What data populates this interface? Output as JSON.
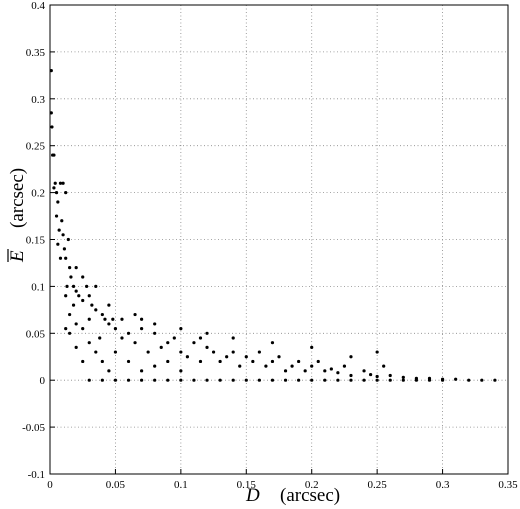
{
  "chart_data": {
    "type": "scatter",
    "xlabel_symbol": "D",
    "xlabel_unit": "(arcsec)",
    "ylabel_symbol": "E",
    "ylabel_unit": "(arcsec)",
    "xlim": [
      0,
      0.35
    ],
    "ylim": [
      -0.1,
      0.4
    ],
    "xticks": [
      0,
      0.05,
      0.1,
      0.15,
      0.2,
      0.25,
      0.3,
      0.35
    ],
    "yticks": [
      -0.1,
      -0.05,
      0,
      0.05,
      0.1,
      0.15,
      0.2,
      0.25,
      0.3,
      0.35,
      0.4
    ],
    "grid": true,
    "series": [
      {
        "color": "#000000",
        "x": [
          0.001,
          0.001,
          0.0015,
          0.002,
          0.003,
          0.003,
          0.004,
          0.005,
          0.006,
          0.008,
          0.01,
          0.012,
          0.005,
          0.007,
          0.009,
          0.01,
          0.011,
          0.012,
          0.014,
          0.015,
          0.016,
          0.013,
          0.018,
          0.02,
          0.022,
          0.025,
          0.028,
          0.03,
          0.032,
          0.035,
          0.04,
          0.042,
          0.045,
          0.048,
          0.05,
          0.012,
          0.015,
          0.02,
          0.025,
          0.03,
          0.035,
          0.038,
          0.04,
          0.045,
          0.05,
          0.055,
          0.06,
          0.065,
          0.07,
          0.075,
          0.08,
          0.085,
          0.09,
          0.095,
          0.1,
          0.105,
          0.11,
          0.115,
          0.12,
          0.125,
          0.13,
          0.135,
          0.14,
          0.145,
          0.15,
          0.155,
          0.16,
          0.165,
          0.17,
          0.175,
          0.18,
          0.185,
          0.19,
          0.195,
          0.2,
          0.205,
          0.21,
          0.215,
          0.22,
          0.225,
          0.23,
          0.24,
          0.245,
          0.25,
          0.255,
          0.26,
          0.27,
          0.28,
          0.29,
          0.3,
          0.31,
          0.32,
          0.33,
          0.34,
          0.03,
          0.04,
          0.05,
          0.06,
          0.07,
          0.08,
          0.09,
          0.1,
          0.11,
          0.12,
          0.13,
          0.14,
          0.15,
          0.16,
          0.17,
          0.18,
          0.19,
          0.2,
          0.21,
          0.22,
          0.23,
          0.24,
          0.25,
          0.26,
          0.27,
          0.28,
          0.29,
          0.3,
          0.06,
          0.07,
          0.08,
          0.09,
          0.1,
          0.065,
          0.07,
          0.08,
          0.1,
          0.12,
          0.115,
          0.14,
          0.17,
          0.2,
          0.23,
          0.25,
          0.015,
          0.02,
          0.025,
          0.03,
          0.012,
          0.018,
          0.008,
          0.006,
          0.02,
          0.025,
          0.035,
          0.045,
          0.055
        ],
        "y": [
          0.33,
          0.285,
          0.27,
          0.24,
          0.24,
          0.205,
          0.21,
          0.2,
          0.19,
          0.21,
          0.21,
          0.2,
          0.175,
          0.16,
          0.17,
          0.155,
          0.14,
          0.13,
          0.15,
          0.12,
          0.11,
          0.1,
          0.1,
          0.095,
          0.09,
          0.085,
          0.1,
          0.09,
          0.08,
          0.075,
          0.07,
          0.065,
          0.06,
          0.065,
          0.055,
          0.055,
          0.05,
          0.035,
          0.02,
          0.04,
          0.03,
          0.045,
          0.02,
          0.01,
          0.03,
          0.045,
          0.05,
          0.04,
          0.055,
          0.03,
          0.05,
          0.035,
          0.04,
          0.045,
          0.03,
          0.025,
          0.04,
          0.02,
          0.035,
          0.03,
          0.02,
          0.025,
          0.03,
          0.015,
          0.025,
          0.02,
          0.03,
          0.015,
          0.02,
          0.025,
          0.01,
          0.015,
          0.02,
          0.01,
          0.015,
          0.02,
          0.01,
          0.012,
          0.008,
          0.015,
          0.005,
          0.01,
          0.006,
          0.004,
          0.015,
          0.005,
          0.003,
          0.002,
          0.002,
          0.001,
          0.001,
          0,
          0,
          0,
          0,
          0,
          0,
          0,
          0,
          0,
          0,
          0,
          0,
          0,
          0,
          0,
          0,
          0,
          0,
          0,
          0,
          0,
          0,
          0,
          0,
          0,
          0,
          0,
          0,
          0,
          0,
          0,
          0.02,
          0.01,
          0.015,
          0.02,
          0.01,
          0.07,
          0.065,
          0.06,
          0.055,
          0.05,
          0.045,
          0.045,
          0.04,
          0.035,
          0.025,
          0.03,
          0.07,
          0.06,
          0.055,
          0.065,
          0.09,
          0.08,
          0.13,
          0.145,
          0.12,
          0.11,
          0.1,
          0.08,
          0.065
        ]
      }
    ]
  }
}
